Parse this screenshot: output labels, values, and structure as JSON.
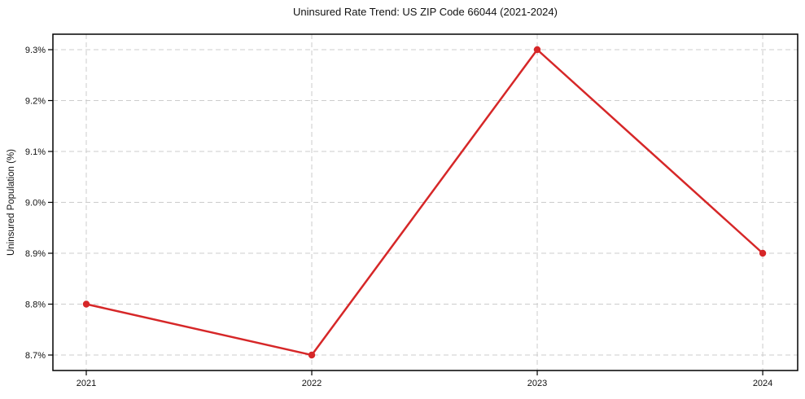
{
  "page": {
    "background_color": "#ffffff"
  },
  "chart_data": {
    "type": "line",
    "title": "Uninsured Rate Trend: US ZIP Code 66044 (2021-2024)",
    "xlabel": "",
    "ylabel": "Uninsured Population (%)",
    "x": [
      2021,
      2022,
      2023,
      2024
    ],
    "x_tick_labels": [
      "2021",
      "2022",
      "2023",
      "2024"
    ],
    "series": [
      {
        "name": "Uninsured rate",
        "values": [
          8.8,
          8.7,
          9.3,
          8.9
        ],
        "color": "#d62728",
        "marker": "circle"
      }
    ],
    "y_ticks": [
      8.7,
      8.8,
      8.9,
      9.0,
      9.1,
      9.2,
      9.3
    ],
    "y_tick_labels": [
      "8.7%",
      "8.8%",
      "8.9%",
      "9.0%",
      "9.1%",
      "9.2%",
      "9.3%"
    ],
    "xlim": [
      2020.852,
      2024.155
    ],
    "ylim": [
      8.6696,
      9.3304
    ],
    "grid": true,
    "grid_style": "dashed",
    "grid_color": "#cccccc",
    "spine_color": "#000000",
    "tick_label_color": "#111111",
    "legend": "none"
  }
}
